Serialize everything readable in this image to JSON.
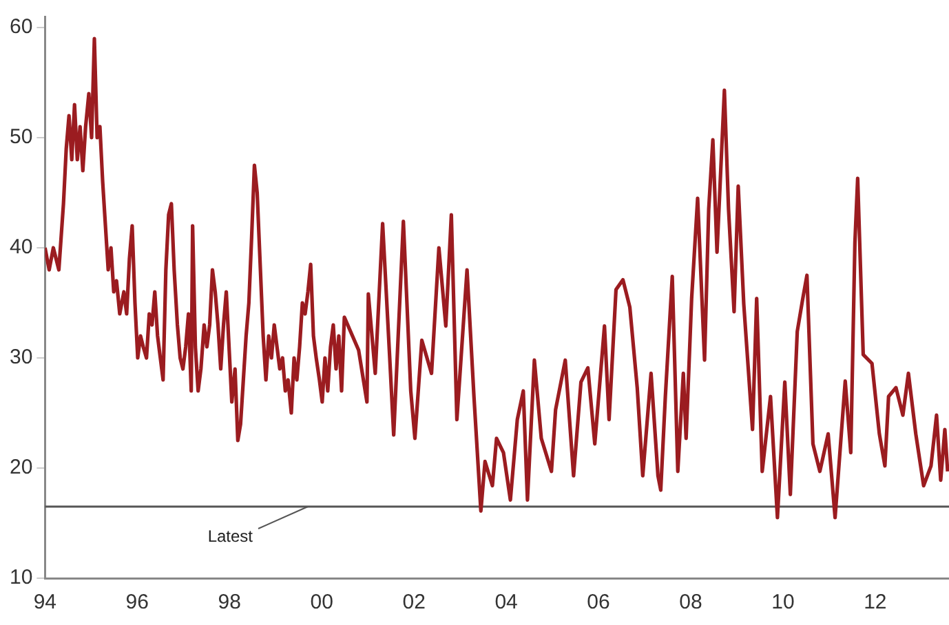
{
  "chart_data": {
    "type": "line",
    "x": [
      1994.0,
      1994.09,
      1994.18,
      1994.3,
      1994.4,
      1994.46,
      1994.52,
      1994.58,
      1994.64,
      1994.7,
      1994.76,
      1994.82,
      1994.88,
      1994.95,
      1995.01,
      1995.07,
      1995.13,
      1995.19,
      1995.25,
      1995.31,
      1995.37,
      1995.43,
      1995.49,
      1995.55,
      1995.62,
      1995.71,
      1995.77,
      1995.83,
      1995.89,
      1995.95,
      1996.01,
      1996.07,
      1996.13,
      1996.2,
      1996.26,
      1996.32,
      1996.38,
      1996.44,
      1996.5,
      1996.56,
      1996.62,
      1996.68,
      1996.74,
      1996.8,
      1996.87,
      1996.93,
      1996.99,
      1997.05,
      1997.11,
      1997.17,
      1997.2,
      1997.26,
      1997.32,
      1997.38,
      1997.45,
      1997.51,
      1997.57,
      1997.63,
      1997.69,
      1997.75,
      1997.81,
      1997.87,
      1997.93,
      1997.99,
      1998.05,
      1998.12,
      1998.18,
      1998.24,
      1998.3,
      1998.36,
      1998.42,
      1998.48,
      1998.54,
      1998.6,
      1998.66,
      1998.73,
      1998.79,
      1998.85,
      1998.91,
      1998.97,
      1999.03,
      1999.09,
      1999.15,
      1999.21,
      1999.27,
      1999.34,
      1999.4,
      1999.46,
      1999.52,
      1999.58,
      1999.64,
      1999.7,
      1999.76,
      1999.82,
      1999.88,
      1999.95,
      2000.01,
      2000.07,
      2000.13,
      2000.19,
      2000.25,
      2000.31,
      2000.37,
      2000.43,
      2000.49,
      2000.8,
      2000.98,
      2001.01,
      2001.16,
      2001.32,
      2001.47,
      2001.56,
      2001.77,
      2001.93,
      2002.02,
      2002.17,
      2002.38,
      2002.54,
      2002.69,
      2002.81,
      2002.93,
      2003.15,
      2003.3,
      2003.45,
      2003.54,
      2003.7,
      2003.79,
      2003.94,
      2004.09,
      2004.24,
      2004.37,
      2004.46,
      2004.61,
      2004.76,
      2004.98,
      2005.07,
      2005.28,
      2005.46,
      2005.62,
      2005.77,
      2005.92,
      2006.13,
      2006.23,
      2006.38,
      2006.53,
      2006.68,
      2006.84,
      2006.96,
      2007.14,
      2007.29,
      2007.35,
      2007.45,
      2007.6,
      2007.72,
      2007.84,
      2007.9,
      2008.02,
      2008.15,
      2008.3,
      2008.39,
      2008.48,
      2008.57,
      2008.73,
      2008.82,
      2008.94,
      2009.03,
      2009.15,
      2009.34,
      2009.43,
      2009.55,
      2009.73,
      2009.88,
      2010.04,
      2010.16,
      2010.31,
      2010.43,
      2010.52,
      2010.65,
      2010.8,
      2010.98,
      2011.13,
      2011.35,
      2011.47,
      2011.56,
      2011.62,
      2011.74,
      2011.93,
      2012.09,
      2012.21,
      2012.29,
      2012.45,
      2012.6,
      2012.72,
      2012.88,
      2013.05,
      2013.21,
      2013.33,
      2013.42,
      2013.51,
      2013.57
    ],
    "series": [
      {
        "color": "#9b1c20",
        "values": [
          40,
          38,
          40,
          38,
          44,
          49,
          52,
          48,
          53,
          48,
          51,
          47,
          51,
          54,
          50,
          59,
          50,
          51,
          46,
          42,
          38,
          40,
          36,
          37,
          34,
          36,
          34,
          39,
          42,
          35,
          30,
          32,
          31,
          30,
          34,
          33,
          36,
          32,
          30,
          28,
          38,
          43,
          44,
          38,
          33,
          30,
          29,
          31,
          34,
          27,
          42,
          31,
          27,
          29,
          33,
          31,
          33,
          38,
          36,
          33,
          29,
          33,
          36,
          31,
          26,
          29,
          22.5,
          24,
          28,
          32,
          35,
          41,
          47.5,
          45,
          39,
          32,
          28,
          32,
          30,
          33,
          31,
          29,
          30,
          27,
          28,
          25,
          30,
          28,
          31,
          35,
          34,
          36,
          38.5,
          32,
          30,
          28,
          26,
          30,
          27,
          31,
          33,
          29,
          32,
          27,
          33.7,
          30.7,
          26,
          35.8,
          28.6,
          42.2,
          30.3,
          23,
          42.4,
          27,
          22.7,
          31.6,
          28.6,
          40,
          32.9,
          43,
          24.4,
          38,
          26.5,
          16.1,
          20.6,
          18.4,
          22.7,
          21.4,
          17.1,
          24.4,
          27,
          17.1,
          29.8,
          22.7,
          19.7,
          25.3,
          29.8,
          19.3,
          27.8,
          29.1,
          22.2,
          32.9,
          24.4,
          36.2,
          37.1,
          34.6,
          27.3,
          19.3,
          28.6,
          19.3,
          18,
          26.5,
          37.4,
          19.7,
          28.6,
          22.7,
          35.4,
          44.5,
          29.8,
          43.5,
          49.8,
          39.6,
          54.3,
          43.5,
          34.2,
          45.6,
          34.9,
          23.5,
          35.4,
          19.7,
          26.5,
          15.5,
          27.8,
          17.6,
          32.4,
          35.4,
          37.5,
          22.2,
          19.7,
          23.1,
          15.5,
          27.9,
          21.4,
          40.5,
          46.3,
          30.3,
          29.5,
          23.1,
          20.2,
          26.5,
          27.3,
          24.8,
          28.6,
          23.1,
          18.4,
          20.2,
          24.8,
          18.9,
          23.5,
          19.7
        ]
      }
    ],
    "xlim": [
      1994,
      2013.6
    ],
    "xticks": [
      {
        "value": 1994,
        "label": "94"
      },
      {
        "value": 1996,
        "label": "96"
      },
      {
        "value": 1998,
        "label": "98"
      },
      {
        "value": 2000,
        "label": "00"
      },
      {
        "value": 2002,
        "label": "02"
      },
      {
        "value": 2004,
        "label": "04"
      },
      {
        "value": 2006,
        "label": "06"
      },
      {
        "value": 2008,
        "label": "08"
      },
      {
        "value": 2010,
        "label": "10"
      },
      {
        "value": 2012,
        "label": "12"
      }
    ],
    "ylim": [
      10,
      61
    ],
    "yticks": [
      10,
      20,
      30,
      40,
      50,
      60
    ],
    "ref_lines": [
      {
        "axis": "y",
        "value": 16.5,
        "label": "Latest",
        "color": "#555555"
      }
    ],
    "grid": false,
    "legend": false,
    "marker": "none",
    "line_style": "solid"
  }
}
